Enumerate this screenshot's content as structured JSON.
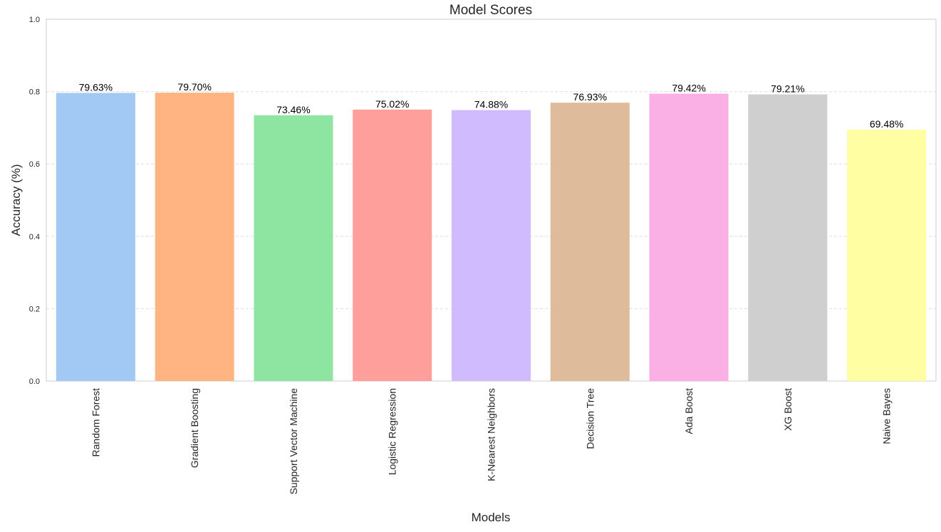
{
  "chart_data": {
    "type": "bar",
    "title": "Model Scores",
    "xlabel": "Models",
    "ylabel": "Accuracy (%)",
    "ylim": [
      0,
      1.0
    ],
    "yticks": [
      "0.0",
      "0.2",
      "0.4",
      "0.6",
      "0.8",
      "1.0"
    ],
    "ytick_values": [
      0.0,
      0.2,
      0.4,
      0.6,
      0.8,
      1.0
    ],
    "grid": "y, dashed",
    "categories": [
      "Random Forest",
      "Gradient Boosting",
      "Support Vector Machine",
      "Logistic Regression",
      "K-Nearest Neighbors",
      "Decision Tree",
      "Ada Boost",
      "XG Boost",
      "Naive Bayes"
    ],
    "values": [
      0.7963,
      0.797,
      0.7346,
      0.7502,
      0.7488,
      0.7693,
      0.7942,
      0.7921,
      0.6948
    ],
    "labels": [
      "79.63%",
      "79.70%",
      "73.46%",
      "75.02%",
      "74.88%",
      "76.93%",
      "79.42%",
      "79.21%",
      "69.48%"
    ],
    "colors": [
      "#a1c9f4",
      "#ffb482",
      "#8de5a1",
      "#ff9f9b",
      "#d0bbff",
      "#debb9b",
      "#fab0e4",
      "#cfcfcf",
      "#fffea3"
    ]
  }
}
